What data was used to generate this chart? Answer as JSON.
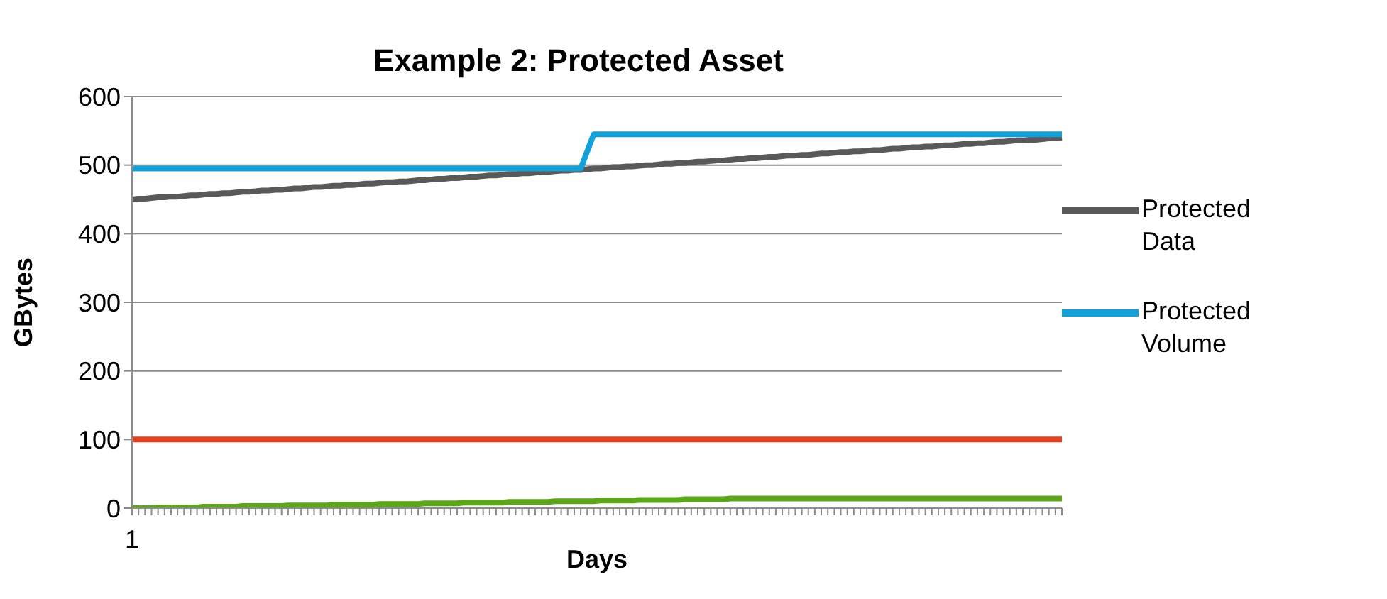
{
  "chart_data": {
    "type": "line",
    "title": "Example 2: Protected Asset",
    "xlabel": "Days",
    "ylabel": "GBytes",
    "categories": [
      "1",
      null,
      null,
      null,
      null,
      null,
      null,
      null,
      null,
      null,
      null,
      null,
      null,
      null,
      null,
      null,
      null,
      null,
      null,
      null,
      null,
      null,
      null,
      null,
      null,
      null,
      null,
      null,
      null,
      null,
      null,
      null,
      null,
      null,
      null,
      null,
      null,
      null,
      null,
      null,
      null,
      null,
      null,
      null,
      null,
      null,
      null,
      null,
      null,
      null,
      null,
      null,
      null,
      null,
      null,
      null,
      null,
      null,
      null,
      null,
      null,
      null,
      null,
      null,
      null,
      null,
      null,
      null,
      null,
      null,
      null,
      null,
      null,
      null,
      null,
      null,
      null,
      null,
      null,
      null,
      null,
      null,
      null,
      null,
      null,
      null,
      null,
      null,
      null,
      null,
      null,
      null,
      null,
      null,
      null,
      null,
      null,
      null,
      null,
      null,
      null,
      null,
      null,
      null,
      null,
      null,
      null,
      null,
      null,
      null,
      null,
      null,
      null,
      null,
      null,
      null,
      null,
      null,
      null,
      null,
      null,
      null,
      null,
      null,
      null,
      null,
      null,
      null,
      null,
      null,
      null,
      null,
      null,
      null,
      null,
      null,
      null,
      null,
      null,
      null,
      null,
      null,
      null,
      null
    ],
    "series": [
      {
        "name": "Protected Data",
        "color": "#595959",
        "values": [
          450,
          451,
          451,
          452,
          453,
          453,
          454,
          454,
          455,
          456,
          456,
          457,
          458,
          458,
          459,
          459,
          460,
          461,
          461,
          462,
          463,
          463,
          464,
          464,
          465,
          466,
          466,
          467,
          468,
          468,
          469,
          470,
          470,
          471,
          471,
          472,
          473,
          473,
          474,
          475,
          475,
          476,
          476,
          477,
          478,
          478,
          479,
          480,
          480,
          481,
          481,
          482,
          483,
          483,
          484,
          485,
          485,
          486,
          487,
          487,
          488,
          488,
          489,
          490,
          490,
          491,
          492,
          492,
          493,
          493,
          494,
          495,
          495,
          496,
          497,
          497,
          498,
          498,
          499,
          500,
          500,
          501,
          502,
          502,
          503,
          503,
          504,
          505,
          505,
          506,
          507,
          507,
          508,
          509,
          509,
          510,
          510,
          511,
          512,
          512,
          513,
          514,
          514,
          515,
          515,
          516,
          517,
          517,
          518,
          519,
          519,
          520,
          520,
          521,
          522,
          522,
          523,
          524,
          524,
          525,
          526,
          526,
          527,
          527,
          528,
          529,
          529,
          530,
          531,
          531,
          532,
          532,
          533,
          534,
          534,
          535,
          536,
          536,
          537,
          537,
          538,
          539,
          539,
          540
        ]
      },
      {
        "name": "Protected Volume",
        "color": "#12a0da",
        "values": [
          495,
          495,
          495,
          495,
          495,
          495,
          495,
          495,
          495,
          495,
          495,
          495,
          495,
          495,
          495,
          495,
          495,
          495,
          495,
          495,
          495,
          495,
          495,
          495,
          495,
          495,
          495,
          495,
          495,
          495,
          495,
          495,
          495,
          495,
          495,
          495,
          495,
          495,
          495,
          495,
          495,
          495,
          495,
          495,
          495,
          495,
          495,
          495,
          495,
          495,
          495,
          495,
          495,
          495,
          495,
          495,
          495,
          495,
          495,
          495,
          495,
          495,
          495,
          495,
          495,
          495,
          495,
          495,
          495,
          495,
          520,
          545,
          545,
          545,
          545,
          545,
          545,
          545,
          545,
          545,
          545,
          545,
          545,
          545,
          545,
          545,
          545,
          545,
          545,
          545,
          545,
          545,
          545,
          545,
          545,
          545,
          545,
          545,
          545,
          545,
          545,
          545,
          545,
          545,
          545,
          545,
          545,
          545,
          545,
          545,
          545,
          545,
          545,
          545,
          545,
          545,
          545,
          545,
          545,
          545,
          545,
          545,
          545,
          545,
          545,
          545,
          545,
          545,
          545,
          545,
          545,
          545,
          545,
          545,
          545,
          545,
          545,
          545,
          545,
          545,
          545,
          545,
          545,
          545
        ]
      },
      {
        "color": "#e8401c",
        "values": [
          100,
          100,
          100,
          100,
          100,
          100,
          100,
          100,
          100,
          100,
          100,
          100,
          100,
          100,
          100,
          100,
          100,
          100,
          100,
          100,
          100,
          100,
          100,
          100,
          100,
          100,
          100,
          100,
          100,
          100,
          100,
          100,
          100,
          100,
          100,
          100,
          100,
          100,
          100,
          100,
          100,
          100,
          100,
          100,
          100,
          100,
          100,
          100,
          100,
          100,
          100,
          100,
          100,
          100,
          100,
          100,
          100,
          100,
          100,
          100,
          100,
          100,
          100,
          100,
          100,
          100,
          100,
          100,
          100,
          100,
          100,
          100,
          100,
          100,
          100,
          100,
          100,
          100,
          100,
          100,
          100,
          100,
          100,
          100,
          100,
          100,
          100,
          100,
          100,
          100,
          100,
          100,
          100,
          100,
          100,
          100,
          100,
          100,
          100,
          100,
          100,
          100,
          100,
          100,
          100,
          100,
          100,
          100,
          100,
          100,
          100,
          100,
          100,
          100,
          100,
          100,
          100,
          100,
          100,
          100,
          100,
          100,
          100,
          100,
          100,
          100,
          100,
          100,
          100,
          100,
          100,
          100,
          100,
          100,
          100,
          100,
          100,
          100,
          100,
          100,
          100,
          100,
          100,
          100
        ]
      },
      {
        "color": "#5ba718",
        "values": [
          0,
          0,
          0,
          0,
          1,
          1,
          1,
          1,
          1,
          1,
          1,
          2,
          2,
          2,
          2,
          2,
          2,
          3,
          3,
          3,
          3,
          3,
          3,
          3,
          4,
          4,
          4,
          4,
          4,
          4,
          4,
          5,
          5,
          5,
          5,
          5,
          5,
          5,
          6,
          6,
          6,
          6,
          6,
          6,
          6,
          7,
          7,
          7,
          7,
          7,
          7,
          8,
          8,
          8,
          8,
          8,
          8,
          8,
          9,
          9,
          9,
          9,
          9,
          9,
          9,
          10,
          10,
          10,
          10,
          10,
          10,
          10,
          11,
          11,
          11,
          11,
          11,
          11,
          12,
          12,
          12,
          12,
          12,
          12,
          12,
          13,
          13,
          13,
          13,
          13,
          13,
          13,
          14,
          14,
          14,
          14,
          14,
          14,
          14,
          14,
          14,
          14,
          14,
          14,
          14,
          14,
          14,
          14,
          14,
          14,
          14,
          14,
          14,
          14,
          14,
          14,
          14,
          14,
          14,
          14,
          14,
          14,
          14,
          14,
          14,
          14,
          14,
          14,
          14,
          14,
          14,
          14,
          14,
          14,
          14,
          14,
          14,
          14,
          14,
          14,
          14,
          14,
          14,
          14
        ]
      }
    ],
    "ylim": [
      0,
      600
    ],
    "yticks": [
      0,
      100,
      200,
      300,
      400,
      500,
      600
    ],
    "grid": "y",
    "legend": "right",
    "marker": "none",
    "line_style": "solid"
  }
}
